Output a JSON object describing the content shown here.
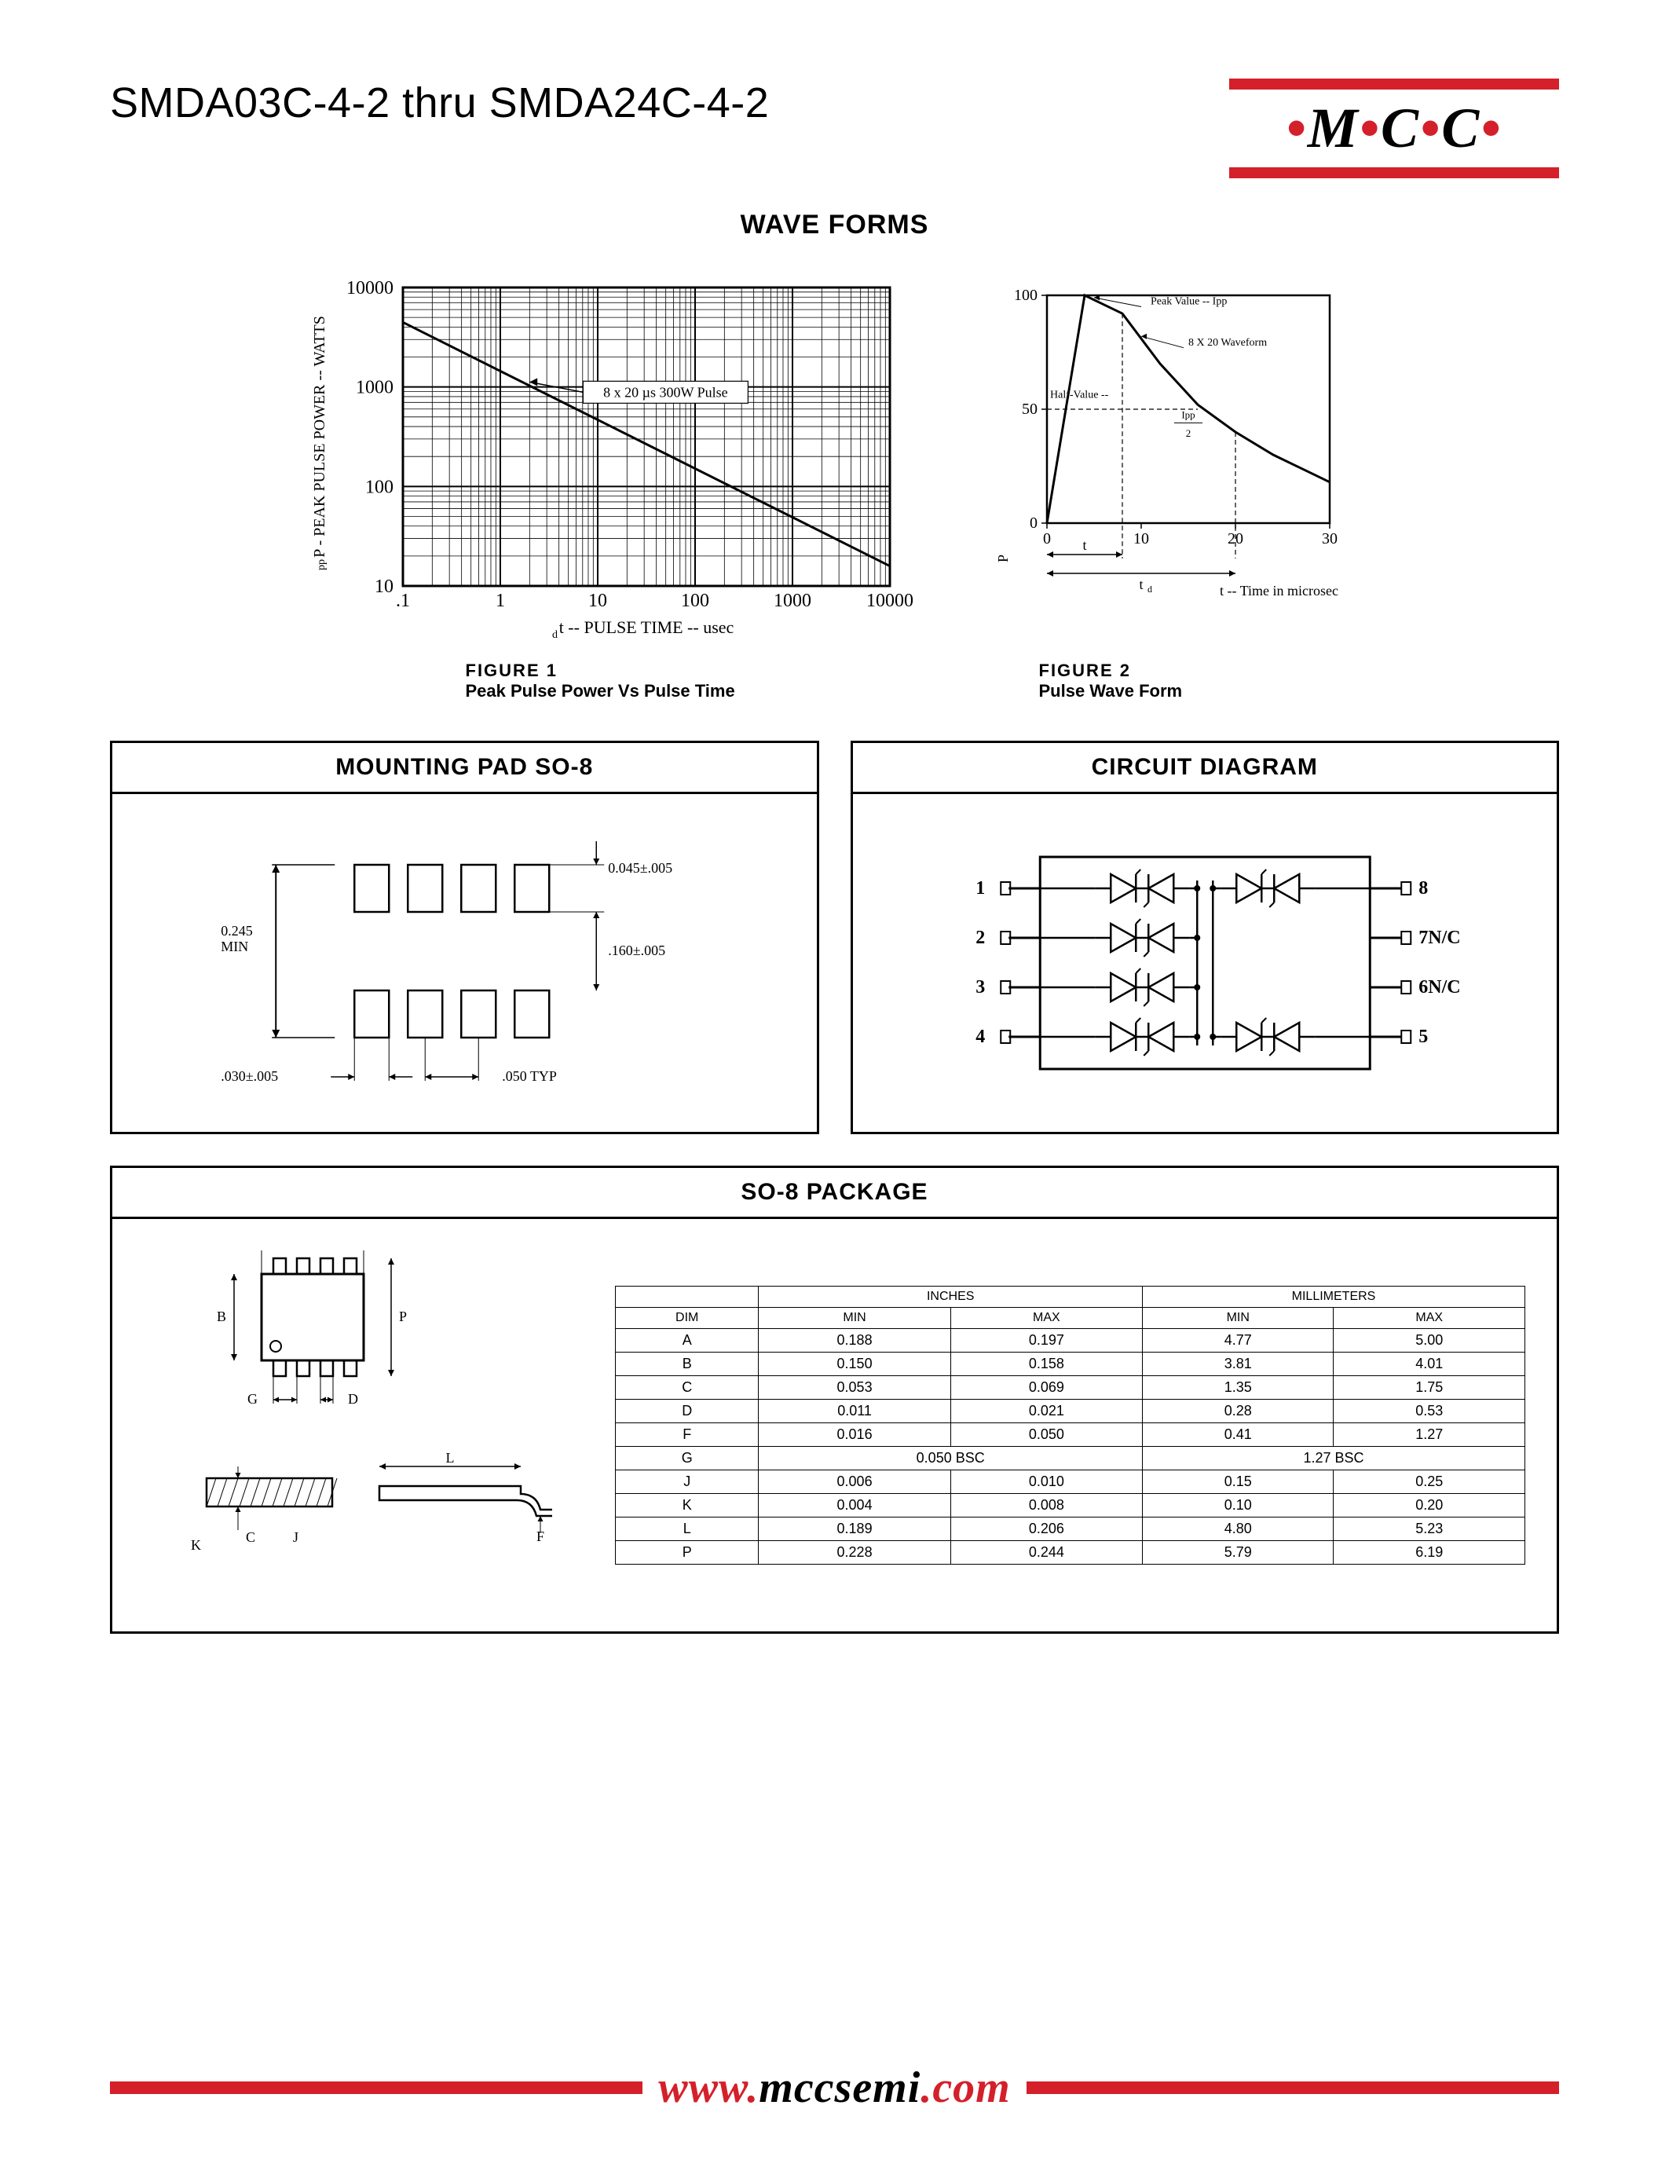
{
  "header": {
    "title": "SMDA03C-4-2 thru SMDA24C-4-2",
    "logo": {
      "letters": [
        "M",
        "C",
        "C"
      ],
      "dot_color": "#d4202a",
      "bar_color": "#d4202a"
    }
  },
  "waveforms": {
    "section_title": "WAVE FORMS",
    "fig1": {
      "label": "FIGURE  1",
      "caption": "Peak Pulse Power Vs Pulse Time",
      "ylabel": "P    - PEAK PULSE POWER -- WATTS",
      "ylabel_sub": "pp",
      "xlabel": "t   -- PULSE TIME -- usec",
      "xlabel_sub": "d",
      "annotation": "8 x 20 µs 300W Pulse",
      "x_ticks": [
        ".1",
        "1",
        "10",
        "100",
        "1000",
        "10000"
      ],
      "y_ticks": [
        "10",
        "100",
        "1000",
        "10000"
      ],
      "line": {
        "x1_dec": 0,
        "y1_dec": 2.65,
        "x2_dec": 5,
        "y2_dec": 0.2
      },
      "grid_color": "#000000",
      "background_color": "#ffffff"
    },
    "fig2": {
      "label": "FIGURE  2",
      "caption": "Pulse Wave Form",
      "ylabel_rot": "P",
      "xlabel": "t -- Time in microsec",
      "x_ticks": [
        "0",
        "10",
        "20",
        "30"
      ],
      "y_ticks": [
        "0",
        "50",
        "100"
      ],
      "annotations": {
        "peak": "Peak Value -- Ipp",
        "wave": "8 X 20 Waveform",
        "half": "Half-Value -- ",
        "half_frac": "Ipp/2",
        "td": "t",
        "td_sub": "d",
        "t_arrow": "t"
      },
      "curve_points": [
        [
          0,
          0
        ],
        [
          4,
          100
        ],
        [
          8,
          92
        ],
        [
          12,
          70
        ],
        [
          16,
          52
        ],
        [
          20,
          40
        ],
        [
          24,
          30
        ],
        [
          28,
          22
        ],
        [
          30,
          18
        ]
      ],
      "dash_t": 8,
      "dash_td": 20,
      "border_color": "#000000"
    }
  },
  "mounting_pad": {
    "title": "MOUNTING PAD  SO-8",
    "dims": {
      "height_min": "0.245\nMIN",
      "pad_h": "0.045±.005",
      "gap_v": ".160±.005",
      "pad_w": ".030±.005",
      "pitch": ".050 TYP"
    }
  },
  "circuit": {
    "title": "CIRCUIT DIAGRAM",
    "pins_left": [
      "1",
      "2",
      "3",
      "4"
    ],
    "pins_right": [
      "8",
      "7N/C",
      "6N/C",
      "5"
    ]
  },
  "package": {
    "title": "SO-8 PACKAGE",
    "dim_labels": [
      "A",
      "B",
      "P",
      "G",
      "D",
      "L",
      "J",
      "C",
      "K",
      "F"
    ],
    "table": {
      "header_groups": [
        "INCHES",
        "MILLIMETERS"
      ],
      "cols": [
        "DIM",
        "MIN",
        "MAX",
        "MIN",
        "MAX"
      ],
      "rows": [
        [
          "A",
          "0.188",
          "0.197",
          "4.77",
          "5.00"
        ],
        [
          "B",
          "0.150",
          "0.158",
          "3.81",
          "4.01"
        ],
        [
          "C",
          "0.053",
          "0.069",
          "1.35",
          "1.75"
        ],
        [
          "D",
          "0.011",
          "0.021",
          "0.28",
          "0.53"
        ],
        [
          "F",
          "0.016",
          "0.050",
          "0.41",
          "1.27"
        ],
        [
          "G",
          "0.050 BSC",
          "",
          "1.27 BSC",
          ""
        ],
        [
          "J",
          "0.006",
          "0.010",
          "0.15",
          "0.25"
        ],
        [
          "K",
          "0.004",
          "0.008",
          "0.10",
          "0.20"
        ],
        [
          "L",
          "0.189",
          "0.206",
          "4.80",
          "5.23"
        ],
        [
          "P",
          "0.228",
          "0.244",
          "5.79",
          "6.19"
        ]
      ]
    }
  },
  "footer": {
    "url_parts": [
      "www.",
      "mccsemi",
      ".com"
    ],
    "bar_color": "#d4202a"
  }
}
